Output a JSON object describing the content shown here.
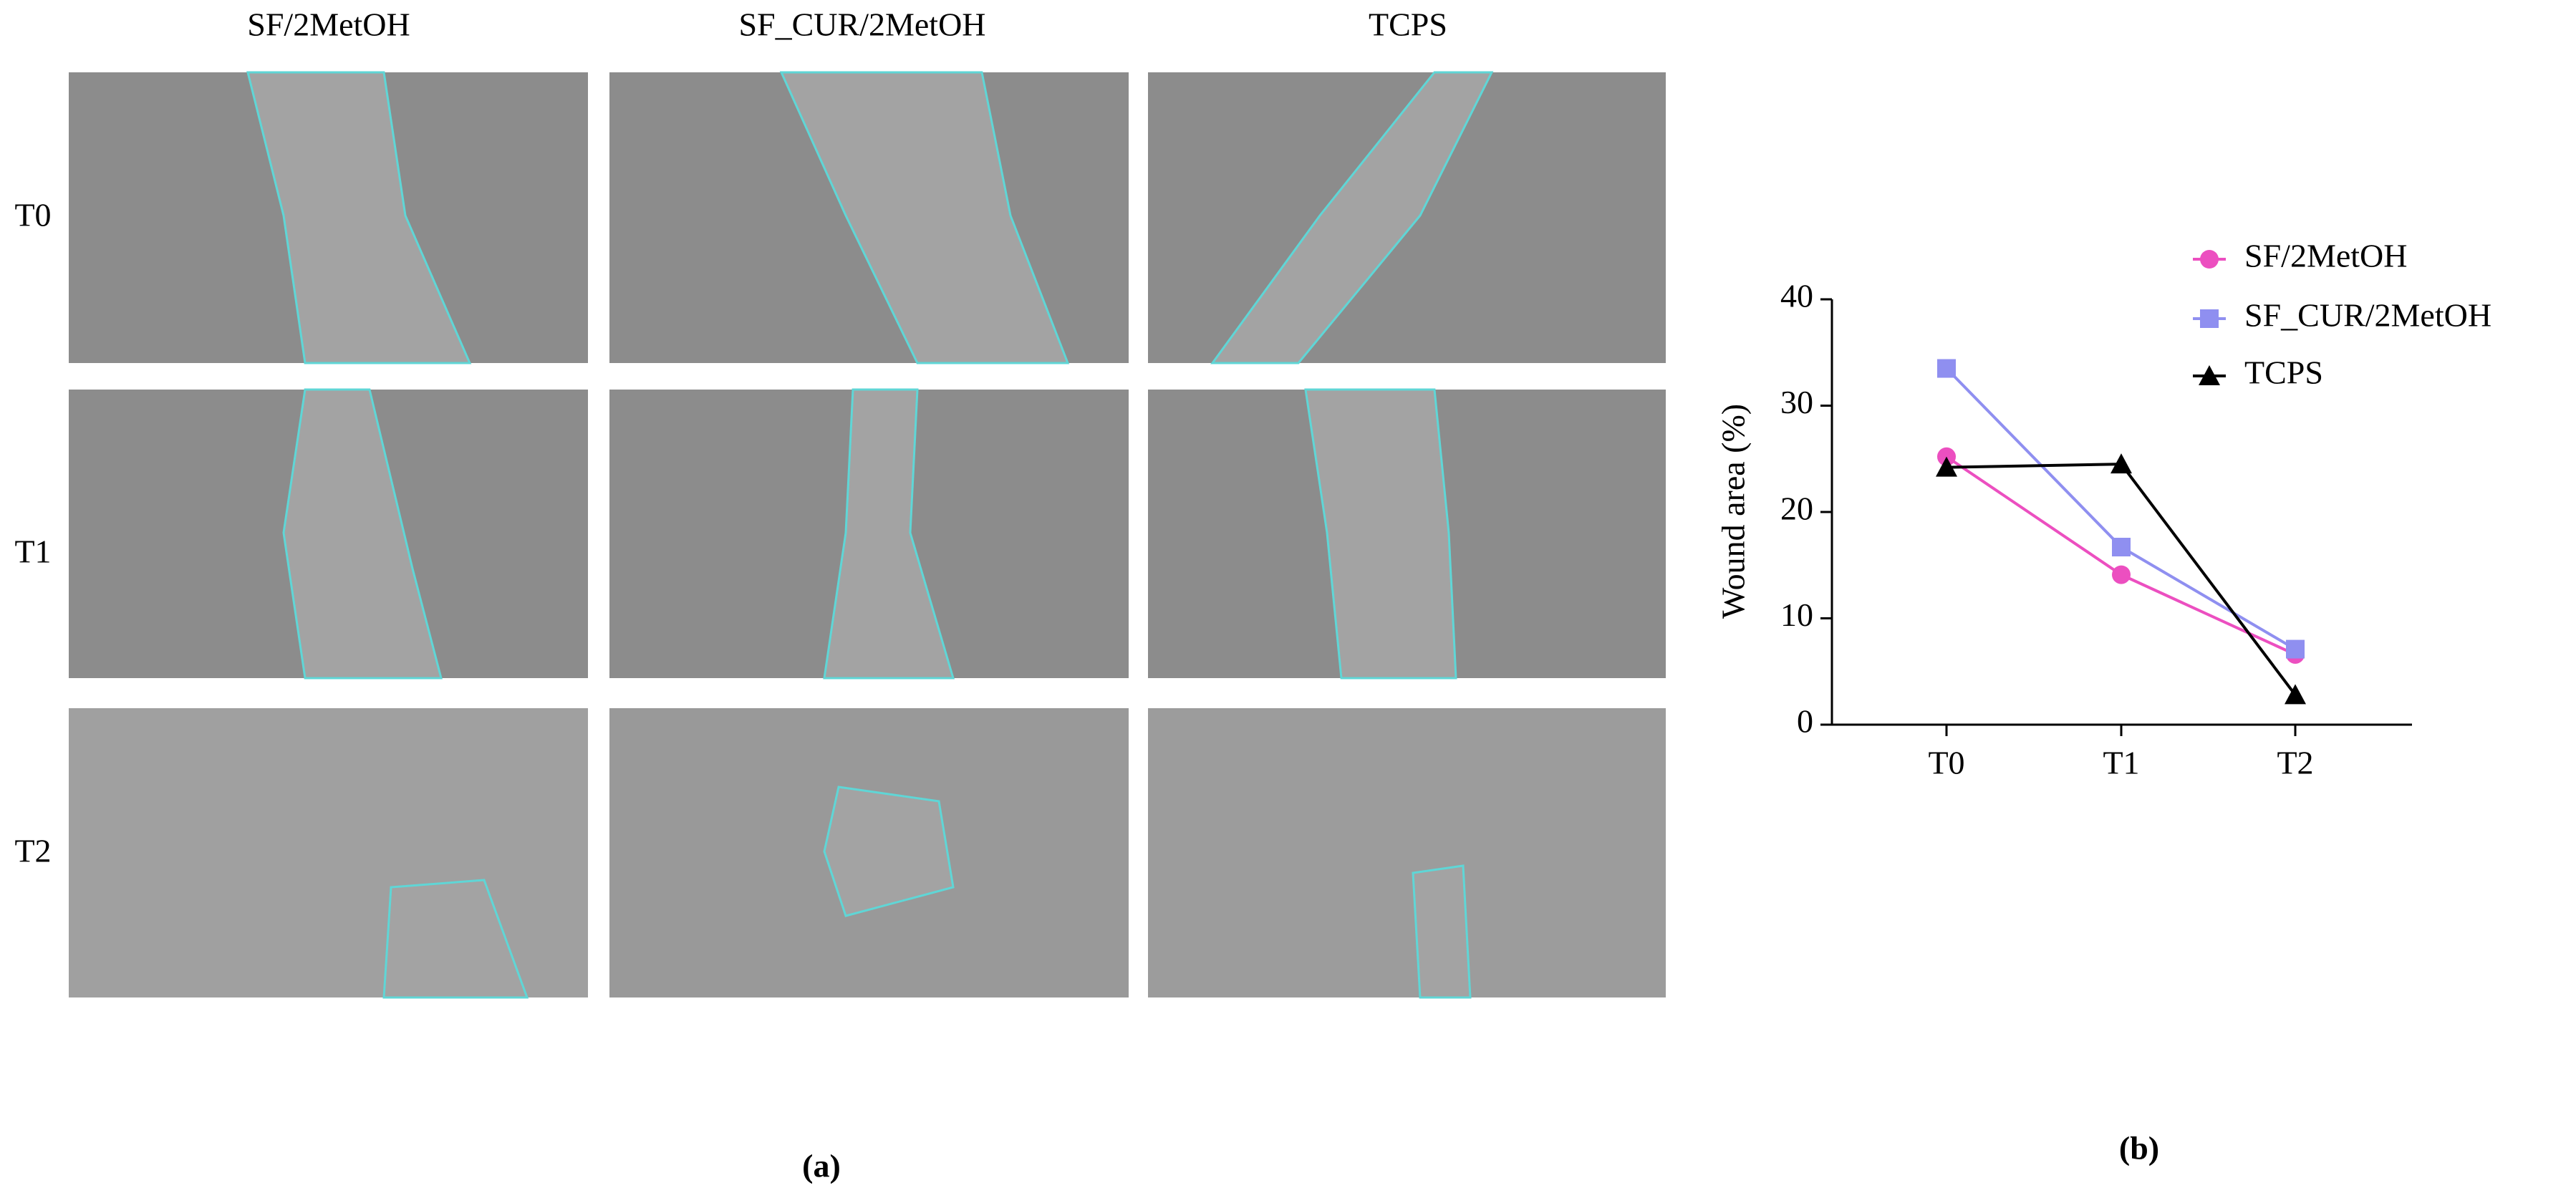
{
  "panel_a": {
    "columns": [
      "SF/2MetOH",
      "SF_CUR/2MetOH",
      "TCPS"
    ],
    "rows": [
      "T0",
      "T1",
      "T2"
    ],
    "label": "(a)"
  },
  "chart_data": {
    "type": "line",
    "y_label": "Wound area (%)",
    "categories": [
      "T0",
      "T1",
      "T2"
    ],
    "series": [
      {
        "name": "SF/2MetOH",
        "color": "#ec4fc0",
        "marker": "circle",
        "values": [
          25.2,
          14.1,
          6.6
        ]
      },
      {
        "name": "SF_CUR/2MetOH",
        "color": "#8f8ff0",
        "marker": "square",
        "values": [
          33.5,
          16.7,
          7.1
        ]
      },
      {
        "name": "TCPS",
        "color": "#000000",
        "marker": "triangle",
        "values": [
          24.2,
          24.5,
          2.8
        ]
      }
    ],
    "ylim": [
      0,
      40
    ],
    "yticks": [
      0,
      10,
      20,
      30,
      40
    ],
    "grid": false,
    "legend": "upper right"
  },
  "panel_b_label": "(b)"
}
